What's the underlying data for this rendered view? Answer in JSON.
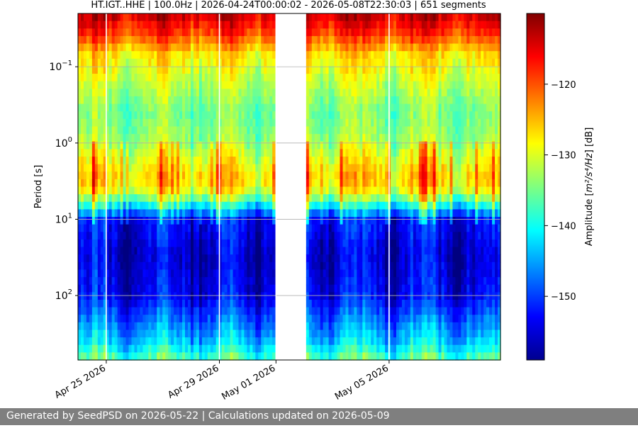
{
  "chart_data": {
    "type": "heatmap",
    "title": "HT.IGT..HHE | 100.0Hz | 2026-04-24T00:00:02 - 2026-05-08T22:30:03 | 651 segments",
    "ylabel": "Period [s]",
    "ylog": true,
    "yinverted": true,
    "ylim": [
      0.02,
      700
    ],
    "xlim": [
      "2026-04-24T00:00:00",
      "2026-05-08T22:30:03"
    ],
    "x_ticks": [
      {
        "date": "2026-04-25",
        "label": "Apr 25 2026"
      },
      {
        "date": "2026-04-29",
        "label": "Apr 29 2026"
      },
      {
        "date": "2026-05-01",
        "label": "May 01 2026"
      },
      {
        "date": "2026-05-05",
        "label": "May 05 2026"
      }
    ],
    "y_ticks": [
      {
        "value": 0.1,
        "label_base": "10",
        "label_exp": "−1"
      },
      {
        "value": 1,
        "label_base": "10",
        "label_exp": "0"
      },
      {
        "value": 10,
        "label_base": "10",
        "label_exp": "1"
      },
      {
        "value": 100,
        "label_base": "10",
        "label_exp": "2"
      }
    ],
    "grid": "horizontal",
    "data_gap": [
      "2026-05-01T00:00:00",
      "2026-05-02T00:00:00"
    ],
    "colormap": "jet",
    "colorbar": {
      "label_prefix": "Amplitude [",
      "label_math": "m²/s⁴/Hz",
      "label_suffix": "] [dB]",
      "range": [
        -159,
        -110
      ],
      "ticks": [
        {
          "value": -120,
          "label": "−120"
        },
        {
          "value": -130,
          "label": "−130"
        },
        {
          "value": -140,
          "label": "−140"
        },
        {
          "value": -150,
          "label": "−150"
        }
      ]
    },
    "amplitude_profile_db": [
      {
        "period": 0.02,
        "db": -113
      },
      {
        "period": 0.035,
        "db": -118
      },
      {
        "period": 0.07,
        "db": -127
      },
      {
        "period": 0.15,
        "db": -131
      },
      {
        "period": 0.4,
        "db": -135
      },
      {
        "period": 0.9,
        "db": -133
      },
      {
        "period": 2.0,
        "db": -128
      },
      {
        "period": 3.0,
        "db": -126
      },
      {
        "period": 4.5,
        "db": -130
      },
      {
        "period": 7.0,
        "db": -142
      },
      {
        "period": 10,
        "db": -152
      },
      {
        "period": 30,
        "db": -155
      },
      {
        "period": 100,
        "db": -153
      },
      {
        "period": 200,
        "db": -148
      },
      {
        "period": 400,
        "db": -143
      },
      {
        "period": 700,
        "db": -136
      }
    ]
  },
  "footer": {
    "text": "Generated by SeedPSD on 2026-05-22 | Calculations updated on 2026-05-09"
  }
}
